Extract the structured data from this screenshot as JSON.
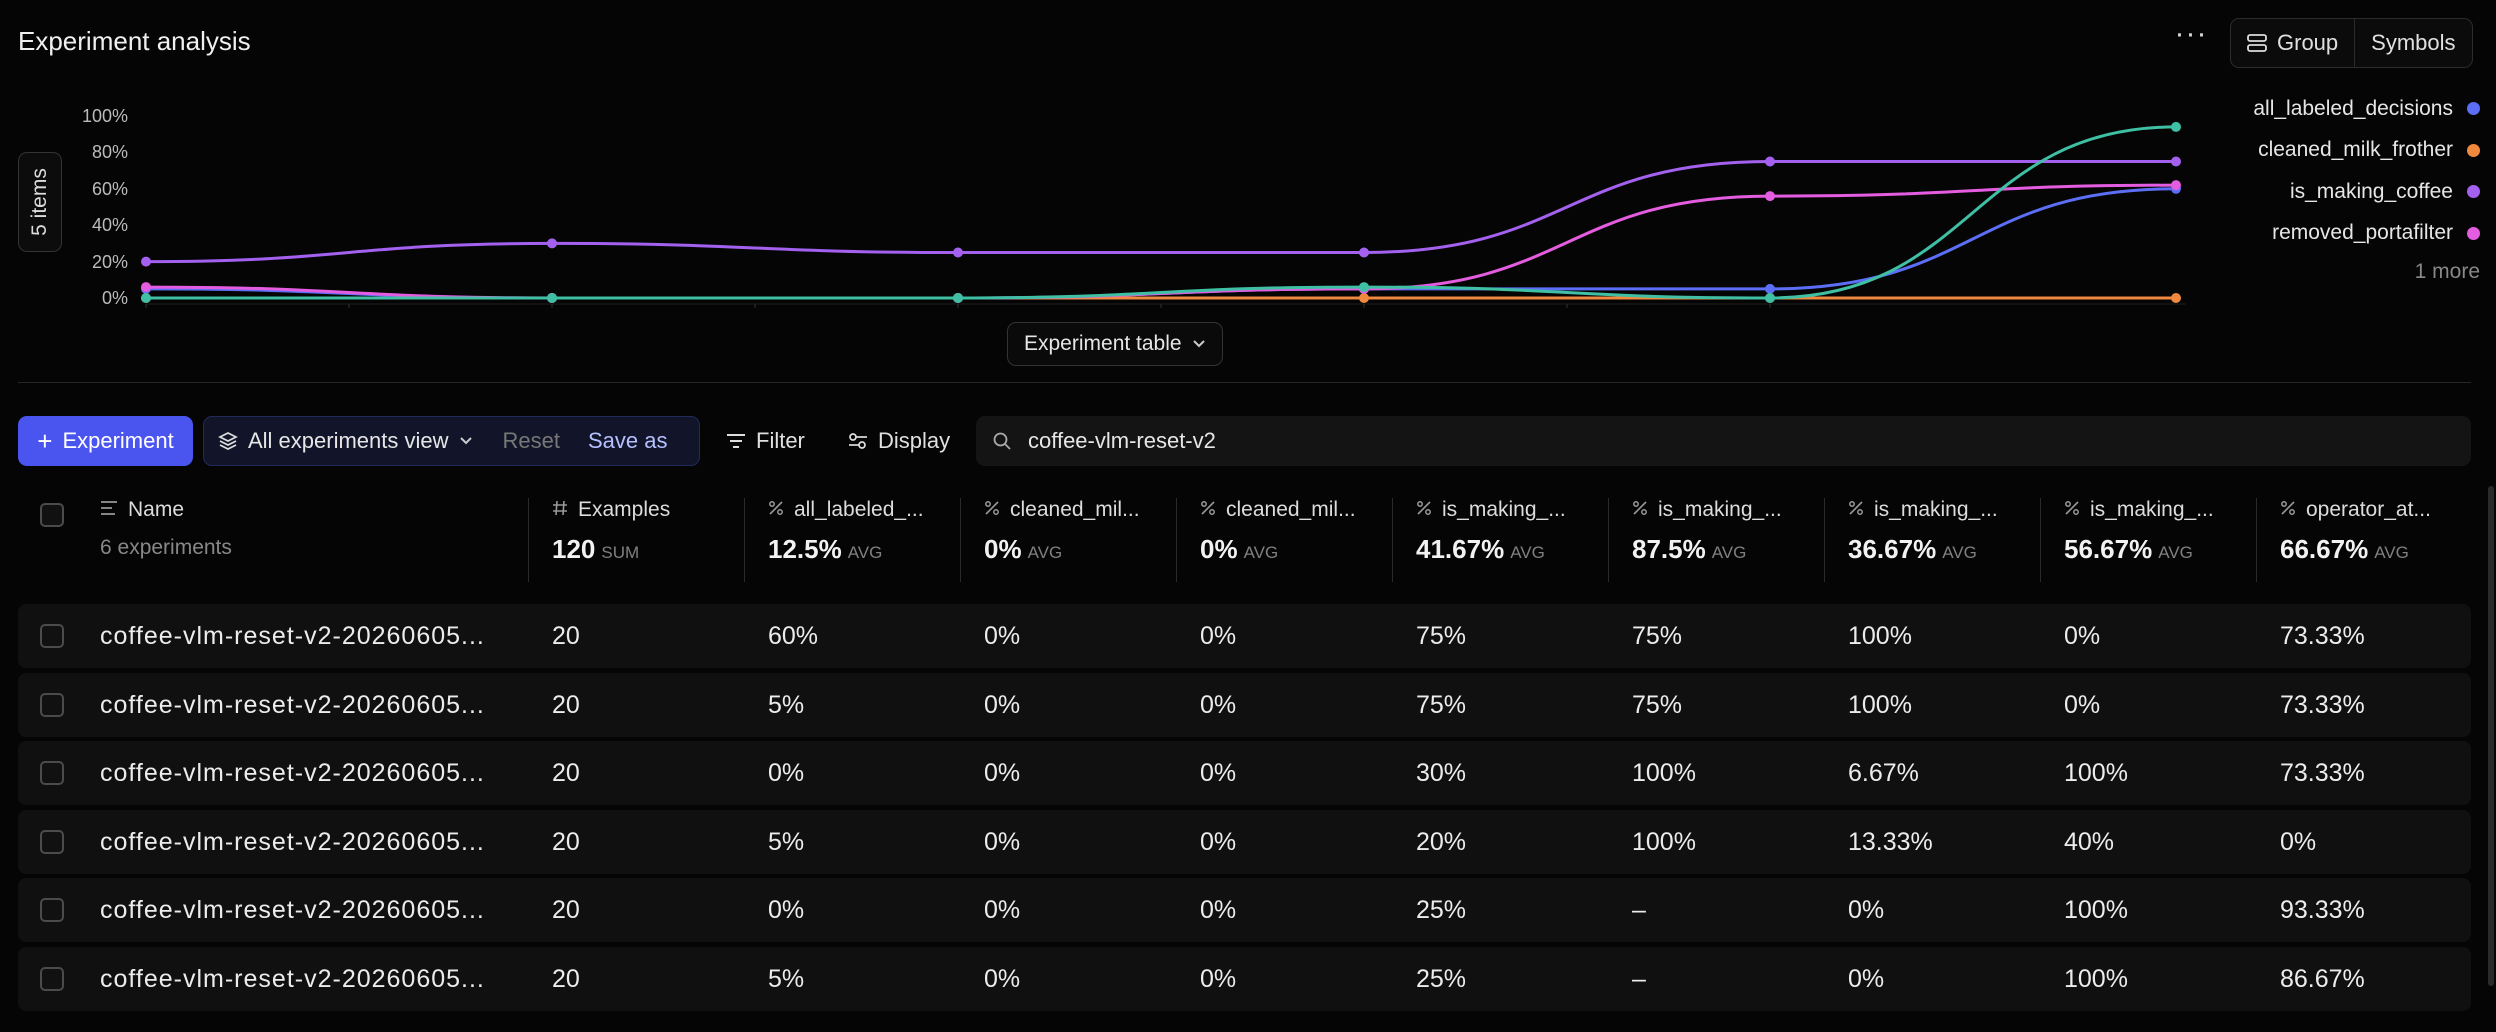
{
  "header": {
    "title": "Experiment analysis",
    "more_label": "···",
    "group_label": "Group",
    "symbols_label": "Symbols"
  },
  "chart_panel": {
    "items_label": "5 items",
    "legend_more": "1 more",
    "experiment_table_label": "Experiment table"
  },
  "chart_data": {
    "type": "line",
    "x": [
      1,
      2,
      3,
      4,
      5,
      6
    ],
    "yticks": [
      "100%",
      "80%",
      "60%",
      "40%",
      "20%",
      "0%"
    ],
    "ylim": [
      0,
      100
    ],
    "series": [
      {
        "name": "all_labeled_decisions",
        "color": "#5b6ef5",
        "values": [
          5,
          0,
          0,
          5,
          5,
          60
        ]
      },
      {
        "name": "cleaned_milk_frother",
        "color": "#f0883e",
        "values": [
          0,
          0,
          0,
          0,
          0,
          0
        ]
      },
      {
        "name": "is_making_coffee",
        "color": "#a461f0",
        "values": [
          20,
          30,
          25,
          25,
          75,
          75
        ]
      },
      {
        "name": "removed_portafilter",
        "color": "#e45ce0",
        "values": [
          6,
          0,
          0,
          5,
          56,
          62
        ]
      },
      {
        "color": "#3fbfa3",
        "values": [
          0,
          0,
          0,
          6,
          0,
          94
        ]
      }
    ],
    "grid": false,
    "legend": "right"
  },
  "toolbar": {
    "add_label": "Experiment",
    "view_label": "All experiments view",
    "reset_label": "Reset",
    "save_label": "Save as",
    "filter_label": "Filter",
    "display_label": "Display",
    "search_value": "coffee-vlm-reset-v2"
  },
  "table": {
    "columns": [
      {
        "name": "Name",
        "sub": "6 experiments",
        "icon": "text-icon"
      },
      {
        "name": "Examples",
        "value": "120",
        "agg": "SUM",
        "icon": "hash-icon"
      },
      {
        "name": "all_labeled_...",
        "value": "12.5%",
        "agg": "AVG",
        "icon": "percent-icon"
      },
      {
        "name": "cleaned_mil...",
        "value": "0%",
        "agg": "AVG",
        "icon": "percent-icon"
      },
      {
        "name": "cleaned_mil...",
        "value": "0%",
        "agg": "AVG",
        "icon": "percent-icon"
      },
      {
        "name": "is_making_...",
        "value": "41.67%",
        "agg": "AVG",
        "icon": "percent-icon"
      },
      {
        "name": "is_making_...",
        "value": "87.5%",
        "agg": "AVG",
        "icon": "percent-icon"
      },
      {
        "name": "is_making_...",
        "value": "36.67%",
        "agg": "AVG",
        "icon": "percent-icon"
      },
      {
        "name": "is_making_...",
        "value": "56.67%",
        "agg": "AVG",
        "icon": "percent-icon"
      },
      {
        "name": "operator_at...",
        "value": "66.67%",
        "agg": "AVG",
        "icon": "percent-icon"
      }
    ],
    "rows": [
      [
        "coffee-vlm-reset-v2-20260605...",
        "20",
        "60%",
        "0%",
        "0%",
        "75%",
        "75%",
        "100%",
        "0%",
        "73.33%"
      ],
      [
        "coffee-vlm-reset-v2-20260605...",
        "20",
        "5%",
        "0%",
        "0%",
        "75%",
        "75%",
        "100%",
        "0%",
        "73.33%"
      ],
      [
        "coffee-vlm-reset-v2-20260605...",
        "20",
        "0%",
        "0%",
        "0%",
        "30%",
        "100%",
        "6.67%",
        "100%",
        "73.33%"
      ],
      [
        "coffee-vlm-reset-v2-20260605...",
        "20",
        "5%",
        "0%",
        "0%",
        "20%",
        "100%",
        "13.33%",
        "40%",
        "0%"
      ],
      [
        "coffee-vlm-reset-v2-20260605...",
        "20",
        "0%",
        "0%",
        "0%",
        "25%",
        "–",
        "0%",
        "100%",
        "93.33%"
      ],
      [
        "coffee-vlm-reset-v2-20260605...",
        "20",
        "5%",
        "0%",
        "0%",
        "25%",
        "–",
        "0%",
        "100%",
        "86.67%"
      ]
    ]
  }
}
